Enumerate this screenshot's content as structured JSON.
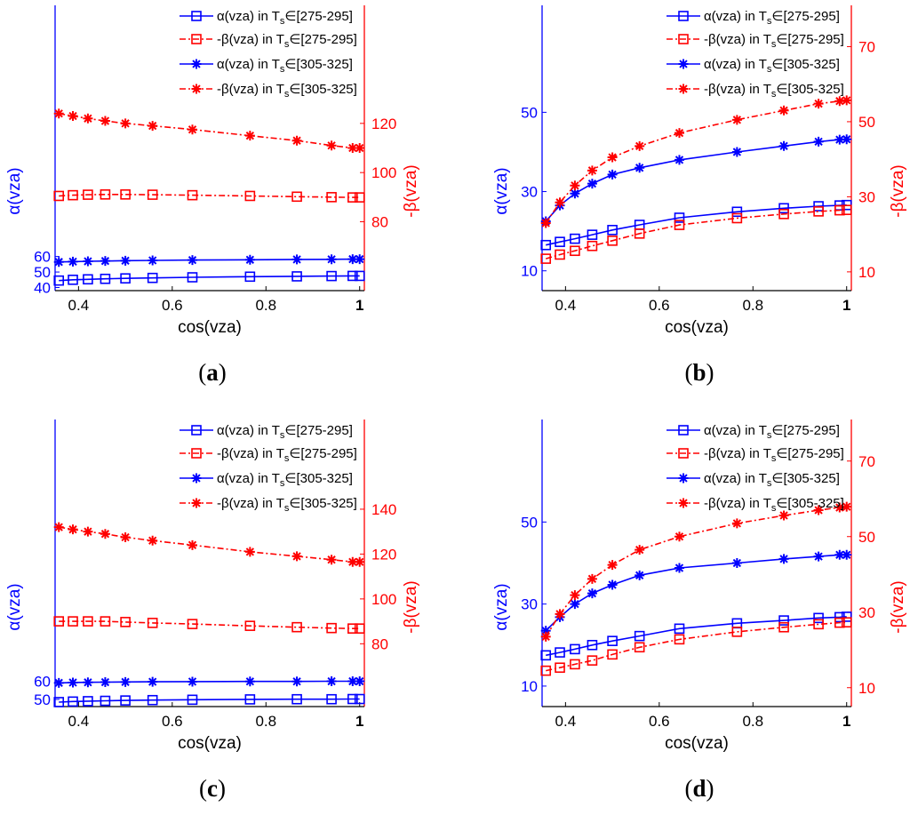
{
  "colors": {
    "alpha": "#0000ff",
    "beta": "#ff0000"
  },
  "legend_entries": [
    {
      "prefix": "α(vza) in T",
      "sub": "s",
      "range": "∈[275-295]",
      "series": "alpha_low"
    },
    {
      "prefix": "-β(vza) in T",
      "sub": "s",
      "range": "∈[275-295]",
      "series": "beta_low"
    },
    {
      "prefix": "α(vza) in T",
      "sub": "s",
      "range": "∈[305-325]",
      "series": "alpha_high"
    },
    {
      "prefix": "-β(vza) in T",
      "sub": "s",
      "range": "∈[305-325]",
      "series": "beta_high"
    }
  ],
  "chart_data": [
    {
      "panel": "a",
      "type": "line",
      "xlabel": "cos(vza)",
      "ylabel_left": "α(vza)",
      "ylabel_right": "-β(vza)",
      "xlim": [
        0.35,
        1.01
      ],
      "xticks": [
        "0.4",
        "0.6",
        "0.8",
        "1"
      ],
      "ylim_left": [
        38,
        222
      ],
      "yticks_left": [
        "40",
        "50",
        "60"
      ],
      "ylim_right": [
        52,
        168
      ],
      "yticks_right": [
        "80",
        "100",
        "120"
      ],
      "x": [
        0.358,
        0.388,
        0.42,
        0.457,
        0.5,
        0.558,
        0.643,
        0.766,
        0.866,
        0.94,
        0.985,
        1.0
      ],
      "series": [
        {
          "name": "α(vza) in Ts∈[275-295]",
          "axis": "left",
          "marker": "square",
          "dash": "solid",
          "color": "#0000ff",
          "values": [
            44.5,
            45,
            45.3,
            45.6,
            45.9,
            46.2,
            46.6,
            47,
            47.2,
            47.4,
            47.5,
            47.5
          ]
        },
        {
          "name": "-β(vza) in Ts∈[275-295]",
          "axis": "right",
          "marker": "square",
          "dash": "dashdot",
          "color": "#ff0000",
          "values": [
            90.5,
            90.8,
            91,
            91.1,
            91.1,
            91,
            90.8,
            90.5,
            90.2,
            90,
            89.9,
            89.9
          ]
        },
        {
          "name": "α(vza) in Ts∈[305-325]",
          "axis": "left",
          "marker": "star",
          "dash": "solid",
          "color": "#0000ff",
          "values": [
            56.5,
            56.7,
            56.9,
            57.1,
            57.3,
            57.5,
            57.7,
            57.9,
            58.1,
            58.2,
            58.3,
            58.3
          ]
        },
        {
          "name": "-β(vza) in Ts∈[305-325]",
          "axis": "right",
          "marker": "star",
          "dash": "dashdot",
          "color": "#ff0000",
          "values": [
            124,
            123,
            122,
            121,
            120,
            119,
            117.5,
            115,
            113,
            111,
            110,
            110
          ]
        }
      ]
    },
    {
      "panel": "b",
      "type": "line",
      "xlabel": "cos(vza)",
      "ylabel_left": "α(vza)",
      "ylabel_right": "-β(vza)",
      "xlim": [
        0.35,
        1.01
      ],
      "xticks": [
        "0.4",
        "0.6",
        "0.8",
        "1"
      ],
      "ylim_left": [
        5,
        77
      ],
      "yticks_left": [
        "10",
        "30",
        "50"
      ],
      "ylim_right": [
        5,
        81
      ],
      "yticks_right": [
        "10",
        "30",
        "50",
        "70"
      ],
      "x": [
        0.358,
        0.388,
        0.42,
        0.457,
        0.5,
        0.558,
        0.643,
        0.766,
        0.866,
        0.94,
        0.985,
        1.0
      ],
      "series": [
        {
          "name": "α(vza) in Ts∈[275-295]",
          "axis": "left",
          "marker": "square",
          "dash": "solid",
          "color": "#0000ff",
          "values": [
            16.5,
            17.3,
            18.1,
            19.1,
            20.3,
            21.6,
            23.4,
            24.9,
            25.8,
            26.3,
            26.5,
            26.6
          ]
        },
        {
          "name": "-β(vza) in Ts∈[275-295]",
          "axis": "right",
          "marker": "square",
          "dash": "dashdot",
          "color": "#ff0000",
          "values": [
            13.5,
            14.6,
            15.6,
            16.9,
            18.3,
            20.2,
            22.5,
            24.3,
            25.4,
            26.1,
            26.4,
            26.5
          ]
        },
        {
          "name": "α(vza) in Ts∈[305-325]",
          "axis": "left",
          "marker": "star",
          "dash": "solid",
          "color": "#0000ff",
          "values": [
            22.5,
            26.5,
            29.5,
            32,
            34.3,
            36,
            38,
            40,
            41.5,
            42.6,
            43.1,
            43.2
          ]
        },
        {
          "name": "-β(vza) in Ts∈[305-325]",
          "axis": "right",
          "marker": "star",
          "dash": "dashdot",
          "color": "#ff0000",
          "values": [
            23,
            28.5,
            33,
            37,
            40.5,
            43.5,
            47,
            50.5,
            53,
            54.8,
            55.5,
            55.7
          ]
        }
      ]
    },
    {
      "panel": "c",
      "type": "line",
      "xlabel": "cos(vza)",
      "ylabel_left": "α(vza)",
      "ylabel_right": "-β(vza)",
      "xlim": [
        0.35,
        1.01
      ],
      "xticks": [
        "0.4",
        "0.6",
        "0.8",
        "1"
      ],
      "ylim_left": [
        46,
        206
      ],
      "yticks_left": [
        "50",
        "60"
      ],
      "ylim_right": [
        52,
        180
      ],
      "yticks_right": [
        "80",
        "100",
        "120",
        "140"
      ],
      "x": [
        0.358,
        0.388,
        0.42,
        0.457,
        0.5,
        0.558,
        0.643,
        0.766,
        0.866,
        0.94,
        0.985,
        1.0
      ],
      "series": [
        {
          "name": "α(vza) in Ts∈[275-295]",
          "axis": "left",
          "marker": "square",
          "dash": "solid",
          "color": "#0000ff",
          "values": [
            48.5,
            48.8,
            49,
            49.2,
            49.4,
            49.6,
            49.8,
            50,
            50.1,
            50.1,
            50.2,
            50.2
          ]
        },
        {
          "name": "-β(vza) in Ts∈[275-295]",
          "axis": "right",
          "marker": "square",
          "dash": "dashdot",
          "color": "#ff0000",
          "values": [
            90,
            90,
            90,
            90,
            89.7,
            89.3,
            88.8,
            88,
            87.4,
            87,
            86.8,
            86.8
          ]
        },
        {
          "name": "α(vza) in Ts∈[305-325]",
          "axis": "left",
          "marker": "star",
          "dash": "solid",
          "color": "#0000ff",
          "values": [
            59.2,
            59.4,
            59.5,
            59.6,
            59.7,
            59.8,
            59.9,
            60,
            60,
            60.1,
            60.1,
            60.1
          ]
        },
        {
          "name": "-β(vza) in Ts∈[305-325]",
          "axis": "right",
          "marker": "star",
          "dash": "dashdot",
          "color": "#ff0000",
          "values": [
            132,
            131,
            130,
            129,
            127.5,
            126,
            124,
            121,
            119,
            117.5,
            116.5,
            116.5
          ]
        }
      ]
    },
    {
      "panel": "d",
      "type": "line",
      "xlabel": "cos(vza)",
      "ylabel_left": "α(vza)",
      "ylabel_right": "-β(vza)",
      "xlim": [
        0.35,
        1.01
      ],
      "xticks": [
        "0.4",
        "0.6",
        "0.8",
        "1"
      ],
      "ylim_left": [
        5,
        75
      ],
      "yticks_left": [
        "10",
        "30",
        "50"
      ],
      "ylim_right": [
        5,
        81
      ],
      "yticks_right": [
        "10",
        "30",
        "50",
        "70"
      ],
      "x": [
        0.358,
        0.388,
        0.42,
        0.457,
        0.5,
        0.558,
        0.643,
        0.766,
        0.866,
        0.94,
        0.985,
        1.0
      ],
      "series": [
        {
          "name": "α(vza) in Ts∈[275-295]",
          "axis": "left",
          "marker": "square",
          "dash": "solid",
          "color": "#0000ff",
          "values": [
            17.5,
            18.2,
            19,
            20,
            21,
            22.2,
            24,
            25.3,
            26,
            26.6,
            26.8,
            26.9
          ]
        },
        {
          "name": "-β(vza) in Ts∈[275-295]",
          "axis": "right",
          "marker": "square",
          "dash": "dashdot",
          "color": "#ff0000",
          "values": [
            14.5,
            15.3,
            16.2,
            17.2,
            18.8,
            20.7,
            22.8,
            24.8,
            26,
            26.8,
            27.2,
            27.3
          ]
        },
        {
          "name": "α(vza) in Ts∈[305-325]",
          "axis": "left",
          "marker": "star",
          "dash": "solid",
          "color": "#0000ff",
          "values": [
            23.5,
            26.8,
            30,
            32.6,
            34.7,
            37,
            38.8,
            40,
            41,
            41.6,
            42,
            42
          ]
        },
        {
          "name": "-β(vza) in Ts∈[305-325]",
          "axis": "right",
          "marker": "star",
          "dash": "dashdot",
          "color": "#ff0000",
          "values": [
            23.5,
            29.5,
            34.5,
            38.8,
            42.5,
            46.5,
            50,
            53.5,
            55.6,
            57,
            57.7,
            57.9
          ]
        }
      ]
    }
  ]
}
